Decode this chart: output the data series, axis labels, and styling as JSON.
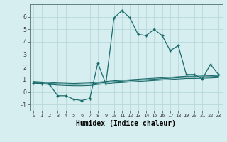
{
  "title": "",
  "xlabel": "Humidex (Indice chaleur)",
  "ylabel": "",
  "background_color": "#d6eef0",
  "grid_color": "#b8d8dc",
  "line_color": "#1a6b6b",
  "xlim": [
    -0.5,
    23.5
  ],
  "ylim": [
    -1.5,
    7.0
  ],
  "yticks": [
    -1,
    0,
    1,
    2,
    3,
    4,
    5,
    6
  ],
  "xticks": [
    0,
    1,
    2,
    3,
    4,
    5,
    6,
    7,
    8,
    9,
    10,
    11,
    12,
    13,
    14,
    15,
    16,
    17,
    18,
    19,
    20,
    21,
    22,
    23
  ],
  "curve1_x": [
    0,
    1,
    2,
    3,
    4,
    5,
    6,
    7,
    8,
    9,
    10,
    11,
    12,
    13,
    14,
    15,
    16,
    17,
    18,
    19,
    20,
    21,
    22,
    23
  ],
  "curve1_y": [
    0.72,
    0.68,
    0.6,
    0.55,
    0.52,
    0.5,
    0.5,
    0.52,
    0.6,
    0.65,
    0.72,
    0.75,
    0.8,
    0.84,
    0.88,
    0.92,
    0.96,
    1.0,
    1.04,
    1.08,
    1.08,
    1.1,
    1.12,
    1.15
  ],
  "curve2_x": [
    0,
    1,
    2,
    3,
    4,
    5,
    6,
    7,
    8,
    9,
    10,
    11,
    12,
    13,
    14,
    15,
    16,
    17,
    18,
    19,
    20,
    21,
    22,
    23
  ],
  "curve2_y": [
    0.78,
    0.74,
    0.68,
    0.64,
    0.62,
    0.6,
    0.61,
    0.63,
    0.7,
    0.76,
    0.82,
    0.86,
    0.9,
    0.94,
    0.98,
    1.02,
    1.06,
    1.1,
    1.14,
    1.18,
    1.18,
    1.2,
    1.22,
    1.25
  ],
  "curve3_x": [
    0,
    1,
    2,
    3,
    4,
    5,
    6,
    7,
    8,
    9,
    10,
    11,
    12,
    13,
    14,
    15,
    16,
    17,
    18,
    19,
    20,
    21,
    22,
    23
  ],
  "curve3_y": [
    0.84,
    0.8,
    0.76,
    0.72,
    0.7,
    0.68,
    0.7,
    0.72,
    0.78,
    0.84,
    0.9,
    0.94,
    0.98,
    1.02,
    1.06,
    1.1,
    1.14,
    1.18,
    1.22,
    1.26,
    1.26,
    1.28,
    1.3,
    1.33
  ],
  "main_x": [
    0,
    1,
    2,
    3,
    4,
    5,
    6,
    7,
    8,
    9,
    10,
    11,
    12,
    13,
    14,
    15,
    16,
    17,
    18,
    19,
    20,
    21,
    22,
    23
  ],
  "main_y": [
    0.72,
    0.65,
    0.6,
    -0.3,
    -0.3,
    -0.58,
    -0.68,
    -0.52,
    2.3,
    0.65,
    5.9,
    6.5,
    5.9,
    4.6,
    4.5,
    5.0,
    4.5,
    3.3,
    3.7,
    1.4,
    1.4,
    1.05,
    2.2,
    1.4
  ]
}
